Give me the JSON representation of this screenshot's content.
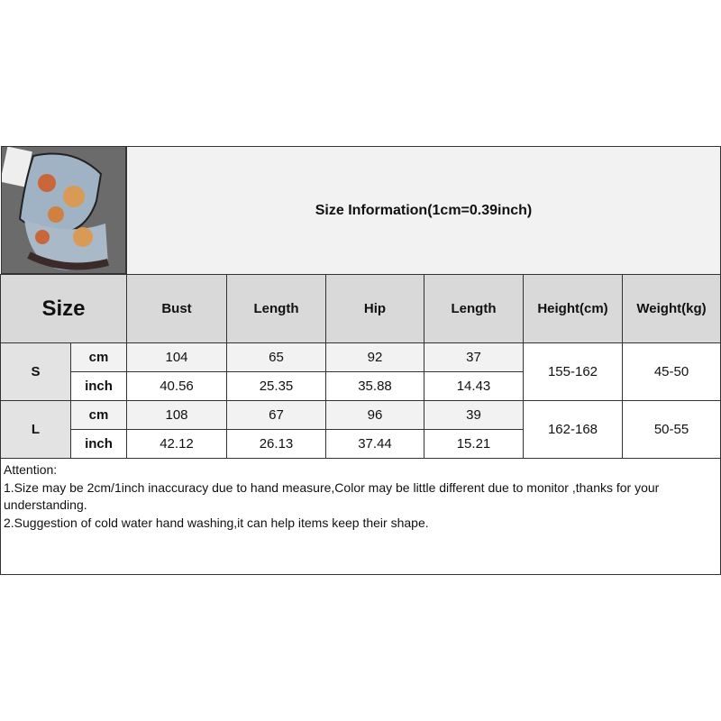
{
  "title": "Size Information(1cm=0.39inch)",
  "header": {
    "size": "Size",
    "columns": [
      "Bust",
      "Length",
      "Hip",
      "Length",
      "Height(cm)",
      "Weight(kg)"
    ]
  },
  "rows": [
    {
      "size": "S",
      "cm": {
        "unit": "cm",
        "values": [
          "104",
          "65",
          "92",
          "37"
        ]
      },
      "inch": {
        "unit": "inch",
        "values": [
          "40.56",
          "25.35",
          "35.88",
          "14.43"
        ]
      },
      "height": "155-162",
      "weight": "45-50"
    },
    {
      "size": "L",
      "cm": {
        "unit": "cm",
        "values": [
          "108",
          "67",
          "96",
          "39"
        ]
      },
      "inch": {
        "unit": "inch",
        "values": [
          "42.12",
          "26.13",
          "37.44",
          "15.21"
        ]
      },
      "height": "162-168",
      "weight": "50-55"
    }
  ],
  "notes": {
    "heading": "Attention:",
    "lines": [
      "1.Size may be 2cm/1inch inaccuracy due to hand measure,Color may be little different due to monitor ,thanks for your understanding.",
      "2.Suggestion of cold water hand washing,it can help items keep their shape."
    ]
  }
}
